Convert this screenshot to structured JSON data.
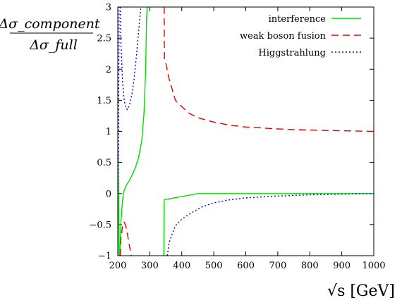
{
  "chart_data": {
    "type": "line",
    "title": "",
    "ylabel": {
      "numerator": "Δσ_component",
      "denominator": "Δσ_full"
    },
    "xlabel": "√s [GeV]",
    "xlim": [
      200,
      1000
    ],
    "ylim": [
      -1,
      3
    ],
    "x_ticks": [
      200,
      300,
      400,
      500,
      600,
      700,
      800,
      900,
      1000
    ],
    "x_tick_labels": [
      "200",
      "300",
      "400",
      "500",
      "600",
      "700",
      "800",
      "900",
      "1000"
    ],
    "y_ticks": [
      -1,
      -0.5,
      0,
      0.5,
      1,
      1.5,
      2,
      2.5,
      3
    ],
    "y_tick_labels": [
      "−1",
      "−0.5",
      "0",
      "0.5",
      "1",
      "1.5",
      "2",
      "2.5",
      "3"
    ],
    "grid": false,
    "legend_position": "top-right",
    "series": [
      {
        "name": "interference",
        "color": "#00e000",
        "dash": "solid",
        "segments": [
          [
            [
              200,
              0.8
            ],
            [
              202,
              0.1
            ],
            [
              204,
              -1.0
            ]
          ],
          [
            [
              206,
              -1.0
            ],
            [
              210,
              -0.45
            ],
            [
              215,
              -0.1
            ],
            [
              220,
              0.05
            ],
            [
              225,
              0.12
            ],
            [
              235,
              0.2
            ],
            [
              245,
              0.3
            ],
            [
              255,
              0.42
            ],
            [
              265,
              0.58
            ],
            [
              275,
              0.85
            ],
            [
              282,
              1.3
            ],
            [
              287,
              2.0
            ],
            [
              290,
              2.8
            ],
            [
              292,
              3.0
            ]
          ],
          [
            [
              344,
              -1.0
            ],
            [
              345,
              -0.1
            ],
            [
              450,
              0.0
            ],
            [
              1000,
              0.0
            ]
          ]
        ]
      },
      {
        "name": "weak boson fusion",
        "color": "#e00000",
        "dash": "10,6",
        "segments": [
          [
            [
              208,
              -1.0
            ],
            [
              210,
              -0.72
            ],
            [
              215,
              -0.52
            ],
            [
              220,
              -0.46
            ],
            [
              225,
              -0.52
            ],
            [
              230,
              -0.65
            ],
            [
              238,
              -0.88
            ],
            [
              242,
              -1.0
            ]
          ],
          [
            [
              345,
              3.0
            ],
            [
              346,
              2.15
            ],
            [
              350,
              2.1
            ],
            [
              360,
              1.85
            ],
            [
              380,
              1.5
            ],
            [
              400,
              1.4
            ],
            [
              420,
              1.3
            ],
            [
              450,
              1.22
            ],
            [
              500,
              1.15
            ],
            [
              550,
              1.1
            ],
            [
              600,
              1.07
            ],
            [
              700,
              1.04
            ],
            [
              800,
              1.02
            ],
            [
              900,
              1.01
            ],
            [
              1000,
              1.0
            ]
          ]
        ]
      },
      {
        "name": "Higgstrahlung",
        "color": "#0000e0",
        "dash": "2,3",
        "segments": [
          [
            [
              200,
              -0.3
            ],
            [
              202,
              0.5
            ],
            [
              204,
              3.0
            ]
          ],
          [
            [
              208,
              3.0
            ],
            [
              210,
              2.4
            ],
            [
              215,
              1.8
            ],
            [
              220,
              1.5
            ],
            [
              225,
              1.38
            ],
            [
              230,
              1.35
            ],
            [
              238,
              1.45
            ],
            [
              245,
              1.62
            ],
            [
              250,
              1.8
            ],
            [
              258,
              2.2
            ],
            [
              265,
              2.6
            ],
            [
              272,
              3.0
            ]
          ],
          [
            [
              355,
              -1.0
            ],
            [
              360,
              -0.8
            ],
            [
              370,
              -0.65
            ],
            [
              380,
              -0.52
            ],
            [
              400,
              -0.41
            ],
            [
              430,
              -0.31
            ],
            [
              460,
              -0.22
            ],
            [
              500,
              -0.15
            ],
            [
              550,
              -0.1
            ],
            [
              600,
              -0.07
            ],
            [
              700,
              -0.04
            ],
            [
              800,
              -0.02
            ],
            [
              900,
              -0.01
            ],
            [
              1000,
              0.0
            ]
          ]
        ]
      }
    ]
  }
}
